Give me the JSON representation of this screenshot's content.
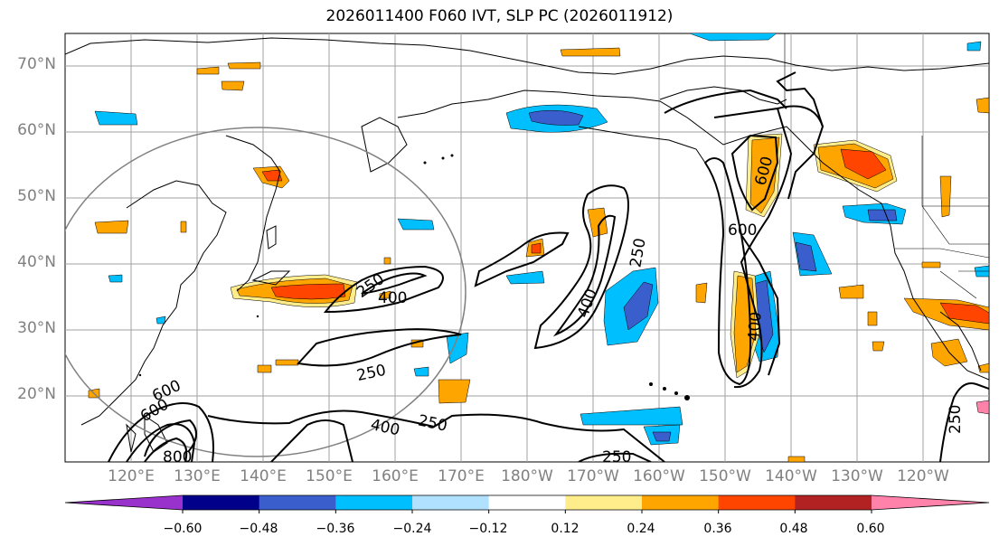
{
  "title": "2026011400 F060 IVT, SLP PC (2026011912)",
  "lat_labels": [
    "70°N",
    "60°N",
    "50°N",
    "40°N",
    "30°N",
    "20°N"
  ],
  "lon_labels": [
    "120°E",
    "130°E",
    "140°E",
    "150°E",
    "160°E",
    "170°E",
    "180°W",
    "170°W",
    "160°W",
    "150°W",
    "140°W",
    "130°W",
    "120°W"
  ],
  "contour_labels": [
    "250",
    "400",
    "250",
    "400",
    "250",
    "250",
    "600",
    "600",
    "600",
    "800",
    "250",
    "400",
    "600",
    "400",
    "250",
    "250"
  ],
  "colorbar": {
    "ticks": [
      "−0.60",
      "−0.48",
      "−0.36",
      "−0.24",
      "−0.12",
      "0.12",
      "0.24",
      "0.36",
      "0.48",
      "0.60"
    ],
    "colors": [
      "#9932cc",
      "#00008b",
      "#3a5fcd",
      "#00bfff",
      "#b0e2ff",
      "#ffffff",
      "#ffec8b",
      "#ffa500",
      "#ff4500",
      "#b22222",
      "#ff82ab"
    ]
  },
  "colors": {
    "land_lines": "#000000",
    "grid": "#a0a0a0",
    "circle": "#808080"
  }
}
